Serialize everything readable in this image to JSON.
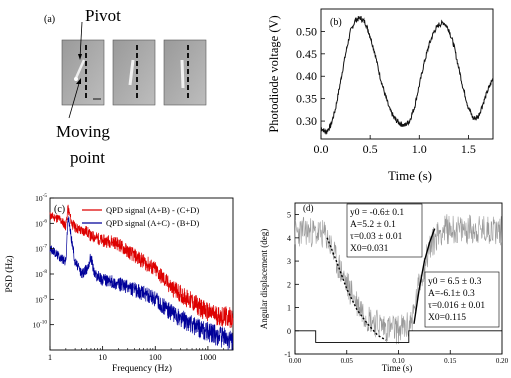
{
  "panel_a": {
    "label": "(a)",
    "pivot_label": "Pivot",
    "moving_label_line1": "Moving",
    "moving_label_line2": "point",
    "frames": 3
  },
  "chart_data": [
    {
      "id": "b",
      "type": "line",
      "panel_label": "(b)",
      "xlabel": "Time (s)",
      "ylabel": "Photodiode voltage (V)",
      "xlim": [
        0,
        1.75
      ],
      "ylim": [
        0.26,
        0.55
      ],
      "xticks": [
        "0.0",
        "0.5",
        "1.0",
        "1.5"
      ],
      "xtick_values": [
        0,
        0.5,
        1.0,
        1.5
      ],
      "yticks": [
        "0.30",
        "0.35",
        "0.40",
        "0.45",
        "0.50"
      ],
      "ytick_values": [
        0.3,
        0.35,
        0.4,
        0.45,
        0.5
      ],
      "series": [
        {
          "x": [
            0.0,
            0.05,
            0.1,
            0.15,
            0.2,
            0.25,
            0.3,
            0.35,
            0.4,
            0.45,
            0.5,
            0.55,
            0.6,
            0.65,
            0.7,
            0.75,
            0.8,
            0.85,
            0.9,
            0.95,
            1.0,
            1.05,
            1.1,
            1.15,
            1.2,
            1.25,
            1.3,
            1.35,
            1.4,
            1.45,
            1.5,
            1.55,
            1.6,
            1.65,
            1.7,
            1.75
          ],
          "y": [
            0.285,
            0.275,
            0.29,
            0.33,
            0.39,
            0.45,
            0.5,
            0.525,
            0.53,
            0.52,
            0.49,
            0.45,
            0.4,
            0.36,
            0.325,
            0.305,
            0.295,
            0.29,
            0.3,
            0.33,
            0.38,
            0.43,
            0.47,
            0.5,
            0.515,
            0.52,
            0.505,
            0.47,
            0.42,
            0.37,
            0.33,
            0.305,
            0.31,
            0.34,
            0.37,
            0.395
          ]
        }
      ]
    },
    {
      "id": "c",
      "type": "line",
      "panel_label": "(c)",
      "xlabel": "Frequency (Hz)",
      "ylabel": "PSD (Hz)",
      "xscale": "log",
      "yscale": "log",
      "xlim": [
        1,
        3000
      ],
      "ylim": [
        1e-11,
        1e-05
      ],
      "xticks": [
        "1",
        "10",
        "100",
        "1000"
      ],
      "xtick_values": [
        1,
        10,
        100,
        1000
      ],
      "yticks": [
        "10-10",
        "10-9",
        "10-8",
        "10-7",
        "10-6",
        "10-5"
      ],
      "ytick_values": [
        1e-10,
        1e-09,
        1e-08,
        1e-07,
        1e-06,
        1e-05
      ],
      "legend_position": "top-right",
      "series": [
        {
          "name": "QPD signal (A+B) - (C+D)",
          "color": "#dd0000",
          "x": [
            1,
            1.5,
            2,
            2.2,
            2.6,
            3,
            4,
            5,
            6,
            7,
            10,
            15,
            20,
            30,
            50,
            100,
            200,
            500,
            1000,
            2000,
            3000
          ],
          "y": [
            2e-06,
            1.5e-06,
            8e-07,
            4e-06,
            1e-06,
            7e-07,
            5e-07,
            5e-07,
            3e-07,
            3e-07,
            2e-07,
            2e-07,
            1.5e-07,
            8e-08,
            4e-08,
            1.5e-08,
            3e-09,
            8e-10,
            3e-10,
            2e-10,
            2e-10
          ]
        },
        {
          "name": "QPD signal (A+C) - (B+D)",
          "color": "#000099",
          "x": [
            1,
            1.5,
            2,
            2.2,
            2.6,
            3,
            4,
            5,
            6,
            7,
            10,
            15,
            20,
            30,
            50,
            100,
            200,
            500,
            1000,
            2000,
            3000
          ],
          "y": [
            1e-07,
            5e-08,
            3e-08,
            2e-06,
            2e-07,
            3e-08,
            1e-08,
            1.5e-08,
            5e-08,
            1e-08,
            6e-09,
            5e-09,
            4e-09,
            3e-09,
            2e-09,
            1e-09,
            3e-10,
            1e-10,
            5e-11,
            3e-11,
            2e-11
          ]
        }
      ]
    },
    {
      "id": "d",
      "type": "line",
      "panel_label": "(d)",
      "xlabel": "Time (s)",
      "ylabel": "Angular displacement (deg)",
      "xlim": [
        0,
        0.2
      ],
      "ylim": [
        -1,
        5.5
      ],
      "xticks": [
        "0.00",
        "0.05",
        "0.10",
        "0.15",
        "0.20"
      ],
      "xtick_values": [
        0,
        0.05,
        0.1,
        0.15,
        0.2
      ],
      "yticks": [
        "-1",
        "0",
        "1",
        "2",
        "3",
        "4",
        "5"
      ],
      "ytick_values": [
        -1,
        0,
        1,
        2,
        3,
        4,
        5
      ],
      "series": [
        {
          "type": "noisy-data",
          "color": "#999999",
          "x": [
            0,
            0.01,
            0.02,
            0.03,
            0.035,
            0.04,
            0.05,
            0.06,
            0.07,
            0.08,
            0.09,
            0.1,
            0.11,
            0.115,
            0.12,
            0.13,
            0.14,
            0.15,
            0.16,
            0.17,
            0.18,
            0.19,
            0.2
          ],
          "y": [
            4.2,
            4.3,
            4.2,
            4.1,
            3.6,
            3.0,
            2.0,
            1.2,
            0.6,
            0.3,
            0.1,
            0.05,
            0.2,
            0.8,
            2.0,
            3.6,
            4.3,
            4.4,
            4.3,
            4.4,
            4.3,
            4.4,
            4.3
          ]
        },
        {
          "type": "fit",
          "style": "dotted",
          "x": [
            0.031,
            0.04,
            0.05,
            0.06,
            0.07,
            0.08,
            0.088
          ],
          "y": [
            4.0,
            3.0,
            1.8,
            0.9,
            0.3,
            -0.2,
            -0.4
          ]
        },
        {
          "type": "fit",
          "style": "solid",
          "x": [
            0.115,
            0.12,
            0.125,
            0.13,
            0.135
          ],
          "y": [
            0.3,
            1.8,
            3.0,
            3.8,
            4.4
          ]
        },
        {
          "type": "trigger",
          "style": "step",
          "x": [
            0,
            0.02,
            0.02,
            0.11,
            0.11,
            0.2
          ],
          "y": [
            0,
            0,
            -0.5,
            -0.5,
            0,
            0
          ]
        }
      ],
      "annotations": [
        {
          "line1": "y0 = -0.6± 0.1",
          "line2": "A=5.2 ± 0.1",
          "line3": "τ=0.03 ± 0.01",
          "line4": "X0=0.031"
        },
        {
          "line1": "y0 = 6.5 ± 0.3",
          "line2": "A=-6.1± 0.3",
          "line3": "τ=0.016 ± 0.01",
          "line4": "X0=0.115"
        }
      ]
    }
  ]
}
